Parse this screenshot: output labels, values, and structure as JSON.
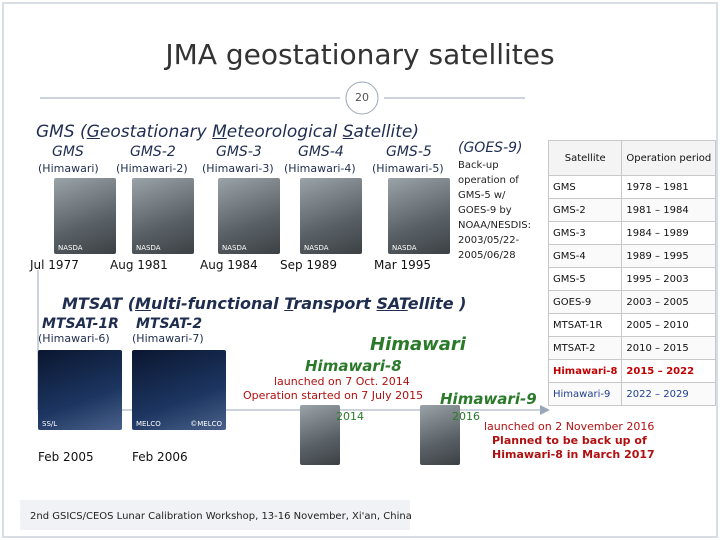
{
  "header": {
    "title": "JMA geostationary satellites",
    "page": "20"
  },
  "gms": {
    "heading": [
      "GMS (",
      "G",
      "eostationary ",
      "M",
      "eteorological ",
      "S",
      "atellite)"
    ],
    "satellites": [
      {
        "name": "GMS",
        "alt": "(Himawari)",
        "date": "Jul 1977",
        "credit": "NASDA"
      },
      {
        "name": "GMS-2",
        "alt": "(Himawari-2)",
        "date": "Aug 1981",
        "credit": "NASDA"
      },
      {
        "name": "GMS-3",
        "alt": "(Himawari-3)",
        "date": "Aug 1984",
        "credit": "NASDA"
      },
      {
        "name": "GMS-4",
        "alt": "(Himawari-4)",
        "date": "Sep 1989",
        "credit": "NASDA"
      },
      {
        "name": "GMS-5",
        "alt": "(Himawari-5)",
        "date": "Mar 1995",
        "credit": "NASDA"
      }
    ],
    "goes9": {
      "name": "(GOES-9)",
      "note": [
        "Back-up",
        "operation of",
        "GMS-5 w/",
        "GOES-9 by",
        "NOAA/NESDIS:",
        "2003/05/22-",
        "2005/06/28"
      ]
    }
  },
  "mtsat": {
    "heading": [
      "MTSAT (",
      "M",
      "ulti-functional ",
      "T",
      "ransport ",
      "SAT",
      "ellite )"
    ],
    "satellites": [
      {
        "name": "MTSAT-1R",
        "alt": "(Himawari-6)",
        "date": "Feb 2005",
        "credit": "SS/L"
      },
      {
        "name": "MTSAT-2",
        "alt": "(Himawari-7)",
        "date": "Feb 2006",
        "credit": "MELCO",
        "credit2": "©MELCO"
      }
    ]
  },
  "himawari": {
    "heading": "Himawari",
    "h8": {
      "name": "Himawari-8",
      "launch": "launched on 7 Oct. 2014",
      "operation": "Operation started on 7 July 2015",
      "year": "2014"
    },
    "h9": {
      "name": "Himawari-9",
      "year": "2016",
      "note": [
        "launched on 2 November 2016",
        "Planned to be back up of",
        "Himawari-8 in March 2017"
      ]
    }
  },
  "table": {
    "header": [
      "Satellite",
      "Operation period"
    ],
    "rows": [
      [
        "GMS",
        "1978 – 1981"
      ],
      [
        "GMS-2",
        "1981 – 1984"
      ],
      [
        "GMS-3",
        "1984 – 1989"
      ],
      [
        "GMS-4",
        "1989 – 1995"
      ],
      [
        "GMS-5",
        "1995 – 2003"
      ],
      [
        "GOES-9",
        "2003 – 2005"
      ],
      [
        "MTSAT-1R",
        "2005 – 2010"
      ],
      [
        "MTSAT-2",
        "2010 – 2015"
      ],
      [
        "Himawari-8",
        "2015 – 2022"
      ],
      [
        "Himawari-9",
        "2022 – 2029"
      ]
    ]
  },
  "footer": "2nd GSICS/CEOS Lunar Calibration Workshop, 13-16 November, Xi'an, China"
}
